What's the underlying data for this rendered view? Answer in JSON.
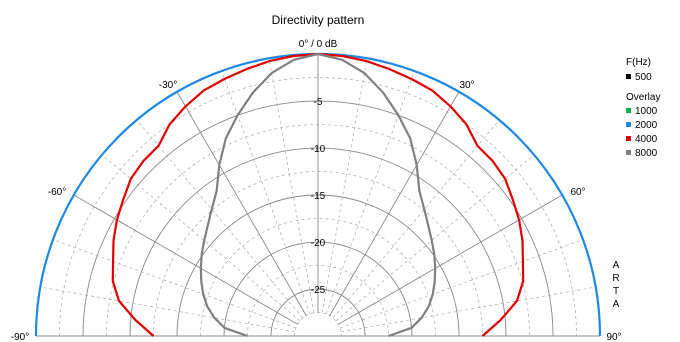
{
  "chart_data": {
    "type": "polar-line",
    "title": "Directivity pattern",
    "angle_range_deg": [
      -90,
      90
    ],
    "angle_ticks": [
      "-90°",
      "-60°",
      "-30°",
      "0° / 0 dB",
      "30°",
      "60°",
      "90°"
    ],
    "radial_unit": "dB",
    "radial_range_db": [
      -30,
      0
    ],
    "radial_ticks": [
      "-5",
      "-10",
      "-15",
      "-20",
      "-25"
    ],
    "legend": {
      "frequency_header": "F(Hz)",
      "overlay_header": "Overlay",
      "entries": [
        {
          "name": "500",
          "color": "#000000",
          "group": "main"
        },
        {
          "name": "1000",
          "color": "#00b050",
          "group": "overlay"
        },
        {
          "name": "2000",
          "color": "#1e88e5",
          "group": "overlay"
        },
        {
          "name": "4000",
          "color": "#e00000",
          "group": "overlay"
        },
        {
          "name": "8000",
          "color": "#808080",
          "group": "overlay"
        }
      ]
    },
    "series": [
      {
        "name": "2000",
        "color": "#1e88e5",
        "angles": [
          -90,
          -60,
          -30,
          0,
          30,
          60,
          90
        ],
        "values": [
          0,
          0,
          0,
          0,
          0,
          0,
          0
        ]
      },
      {
        "name": "4000",
        "color": "#e00000",
        "angles": [
          -90,
          -85,
          -80,
          -75,
          -70,
          -65,
          -60,
          -55,
          -50,
          -45,
          -40,
          -35,
          -30,
          -25,
          -20,
          -15,
          -10,
          -5,
          0,
          5,
          10,
          15,
          20,
          25,
          30,
          35,
          40,
          45,
          50,
          55,
          60,
          65,
          70,
          75,
          80,
          85,
          90
        ],
        "values": [
          -12.5,
          -10.5,
          -8.5,
          -7.4,
          -6.8,
          -6.0,
          -5.3,
          -4.7,
          -4.0,
          -3.7,
          -3.6,
          -2.5,
          -1.8,
          -1.2,
          -0.9,
          -0.6,
          -0.3,
          -0.1,
          0,
          -0.1,
          -0.3,
          -0.6,
          -0.9,
          -1.2,
          -1.8,
          -2.5,
          -3.6,
          -3.7,
          -4.0,
          -4.7,
          -5.3,
          -6.0,
          -6.8,
          -7.4,
          -8.5,
          -10.5,
          -12.5
        ]
      },
      {
        "name": "8000",
        "color": "#808080",
        "angles": [
          -90,
          -85,
          -80,
          -75,
          -70,
          -65,
          -60,
          -55,
          -50,
          -45,
          -40,
          -35,
          -30,
          -25,
          -20,
          -15,
          -10,
          -5,
          0,
          5,
          10,
          15,
          20,
          25,
          30,
          35,
          40,
          45,
          50,
          55,
          60,
          65,
          70,
          75,
          80,
          85,
          90
        ],
        "values": [
          -22.5,
          -20,
          -18.8,
          -17.8,
          -17.0,
          -16.3,
          -15.6,
          -14.9,
          -14.2,
          -13.4,
          -12.4,
          -11.2,
          -9.0,
          -6.8,
          -5.0,
          -3.2,
          -1.6,
          -0.5,
          0,
          -0.5,
          -1.6,
          -3.2,
          -5.0,
          -6.8,
          -9.0,
          -11.2,
          -12.4,
          -13.4,
          -14.2,
          -14.9,
          -15.6,
          -16.3,
          -17.0,
          -17.8,
          -18.8,
          -20,
          -22.5
        ]
      }
    ],
    "watermark": [
      "A",
      "R",
      "T",
      "A"
    ]
  }
}
